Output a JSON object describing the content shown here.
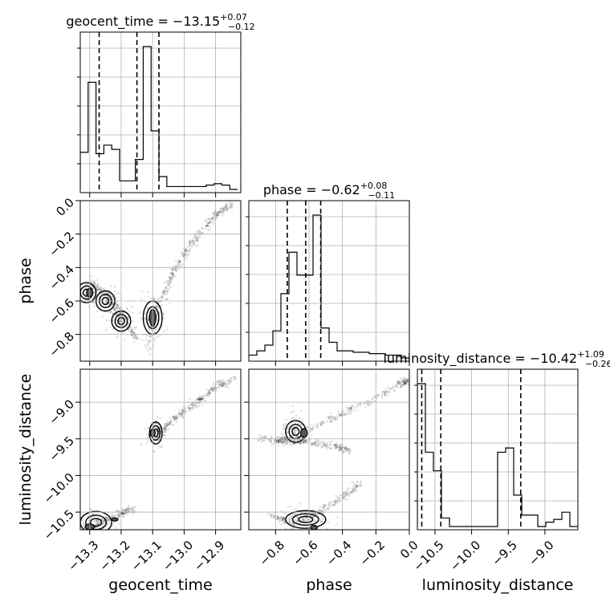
{
  "chart_data": {
    "type": "corner",
    "parameters": [
      {
        "name": "geocent_time",
        "label": "geocent_time",
        "title": "geocent_time = −13.15",
        "title_sup": "+0.07",
        "title_sub": "−0.12",
        "range": [
          -13.33,
          -12.82
        ],
        "ticks": [
          -13.3,
          -13.2,
          -13.1,
          -13.0,
          -12.9
        ],
        "tick_labels": [
          "−13.3",
          "−13.2",
          "−13.1",
          "−13.0",
          "−12.9"
        ],
        "quantiles": [
          -13.27,
          -13.15,
          -13.08
        ],
        "hist": {
          "edges": [
            -13.33,
            -13.305,
            -13.28,
            -13.255,
            -13.23,
            -13.205,
            -13.18,
            -13.155,
            -13.13,
            -13.105,
            -13.08,
            -13.055,
            -13.03,
            -13.005,
            -12.98,
            -12.955,
            -12.93,
            -12.905,
            -12.88,
            -12.855,
            -12.83
          ],
          "counts": [
            0.26,
            0.75,
            0.25,
            0.31,
            0.28,
            0.06,
            0.06,
            0.21,
            1.0,
            0.41,
            0.09,
            0.02,
            0.02,
            0.02,
            0.02,
            0.02,
            0.03,
            0.04,
            0.03,
            0.0
          ]
        }
      },
      {
        "name": "phase",
        "label": "phase",
        "title": "phase = −0.62",
        "title_sup": "+0.08",
        "title_sub": "−0.11",
        "range": [
          -0.96,
          0.0
        ],
        "ticks": [
          -0.8,
          -0.6,
          -0.4,
          -0.2,
          0.0
        ],
        "tick_labels": [
          "−0.8",
          "−0.6",
          "−0.4",
          "−0.2",
          "0.0"
        ],
        "quantiles": [
          -0.73,
          -0.62,
          -0.53
        ],
        "hist": {
          "edges": [
            -0.96,
            -0.912,
            -0.864,
            -0.816,
            -0.768,
            -0.72,
            -0.672,
            -0.624,
            -0.576,
            -0.528,
            -0.48,
            -0.432,
            -0.384,
            -0.336,
            -0.288,
            -0.24,
            -0.192,
            -0.144,
            -0.096,
            -0.048,
            0.0
          ],
          "counts": [
            0.02,
            0.05,
            0.09,
            0.19,
            0.45,
            0.74,
            0.58,
            0.58,
            1.0,
            0.21,
            0.11,
            0.05,
            0.05,
            0.04,
            0.04,
            0.03,
            0.03,
            0.02,
            0.02,
            0.0
          ]
        }
      },
      {
        "name": "luminosity_distance",
        "label": "luminosity_distance",
        "title": "luminosity_distance = −10.42",
        "title_sup": "+1.09",
        "title_sub": "−0.26",
        "range": [
          -10.74,
          -8.55
        ],
        "ticks": [
          -10.5,
          -10.0,
          -9.5,
          -9.0
        ],
        "tick_labels": [
          "−10.5",
          "−10.0",
          "−9.5",
          "−9.0"
        ],
        "quantiles": [
          -10.68,
          -10.42,
          -9.33
        ],
        "hist": {
          "edges": [
            -10.74,
            -10.6305,
            -10.521,
            -10.4115,
            -10.302,
            -10.1925,
            -10.083,
            -9.9735,
            -9.864,
            -9.7545,
            -9.645,
            -9.5355,
            -9.426,
            -9.3165,
            -9.207,
            -9.0975,
            -8.988,
            -8.8785,
            -8.769,
            -8.6595,
            -8.55
          ],
          "counts": [
            1.0,
            0.52,
            0.39,
            0.06,
            0.0,
            0.0,
            0.0,
            0.0,
            0.0,
            0.0,
            0.52,
            0.55,
            0.22,
            0.08,
            0.08,
            0.0,
            0.03,
            0.05,
            0.1,
            0.0
          ]
        }
      }
    ],
    "scatter": {
      "phase_vs_geocent_time": {
        "branches": [
          {
            "x": [
              -13.3,
              -13.25,
              -13.2,
              -13.15
            ],
            "y": [
              -0.48,
              -0.56,
              -0.68,
              -0.83
            ]
          },
          {
            "x": [
              -13.12,
              -13.08,
              -13.04,
              -13.0,
              -12.95,
              -12.9,
              -12.85
            ],
            "y": [
              -0.88,
              -0.62,
              -0.45,
              -0.32,
              -0.2,
              -0.08,
              -0.02
            ]
          }
        ],
        "contour_centers": [
          {
            "x": -13.31,
            "y": -0.55,
            "sx": 0.03,
            "sy": 0.06
          },
          {
            "x": -13.25,
            "y": -0.6,
            "sx": 0.03,
            "sy": 0.06
          },
          {
            "x": -13.2,
            "y": -0.72,
            "sx": 0.03,
            "sy": 0.06
          },
          {
            "x": -13.1,
            "y": -0.7,
            "sx": 0.03,
            "sy": 0.1
          }
        ],
        "filled_peaks": [
          {
            "x": -13.3,
            "y": -0.55,
            "rx": 0.01,
            "ry": 0.025
          },
          {
            "x": -13.1,
            "y": -0.7,
            "rx": 0.01,
            "ry": 0.05
          }
        ]
      },
      "luminosity_distance_vs_geocent_time": {
        "branches": [
          {
            "x": [
              -13.1,
              -13.05,
              -13.0,
              -12.95,
              -12.9,
              -12.84
            ],
            "y": [
              -9.45,
              -9.3,
              -9.12,
              -8.97,
              -8.8,
              -8.68
            ]
          },
          {
            "x": [
              -13.3,
              -13.25,
              -13.2,
              -13.16
            ],
            "y": [
              -10.72,
              -10.62,
              -10.52,
              -10.45
            ]
          }
        ],
        "contour_centers": [
          {
            "x": -13.09,
            "y": -9.42,
            "sx": 0.02,
            "sy": 0.15
          },
          {
            "x": -13.28,
            "y": -10.64,
            "sx": 0.05,
            "sy": 0.15
          }
        ],
        "filled_peaks": [
          {
            "x": -13.1,
            "y": -9.42,
            "rx": 0.008,
            "ry": 0.05
          },
          {
            "x": -13.3,
            "y": -10.7,
            "rx": 0.015,
            "ry": 0.04
          },
          {
            "x": -13.22,
            "y": -10.6,
            "rx": 0.01,
            "ry": 0.02
          }
        ]
      },
      "luminosity_distance_vs_phase": {
        "branches": [
          {
            "x": [
              -0.82,
              -0.65,
              -0.45,
              -0.25,
              -0.05,
              0.0
            ],
            "y": [
              -9.55,
              -9.45,
              -9.2,
              -9.0,
              -8.75,
              -8.7
            ]
          },
          {
            "x": [
              -0.9,
              -0.75,
              -0.6,
              -0.45,
              -0.35
            ],
            "y": [
              -9.5,
              -9.52,
              -9.55,
              -9.6,
              -9.65
            ]
          },
          {
            "x": [
              -0.82,
              -0.7,
              -0.55,
              -0.4,
              -0.3
            ],
            "y": [
              -10.55,
              -10.65,
              -10.5,
              -10.3,
              -10.1
            ]
          }
        ],
        "contour_centers": [
          {
            "x": -0.68,
            "y": -9.4,
            "sx": 0.06,
            "sy": 0.15
          },
          {
            "x": -0.62,
            "y": -10.6,
            "sx": 0.12,
            "sy": 0.12
          }
        ],
        "filled_peaks": [
          {
            "x": -0.63,
            "y": -9.42,
            "rx": 0.02,
            "ry": 0.06
          },
          {
            "x": -0.57,
            "y": -10.71,
            "rx": 0.02,
            "ry": 0.03
          }
        ]
      }
    }
  }
}
